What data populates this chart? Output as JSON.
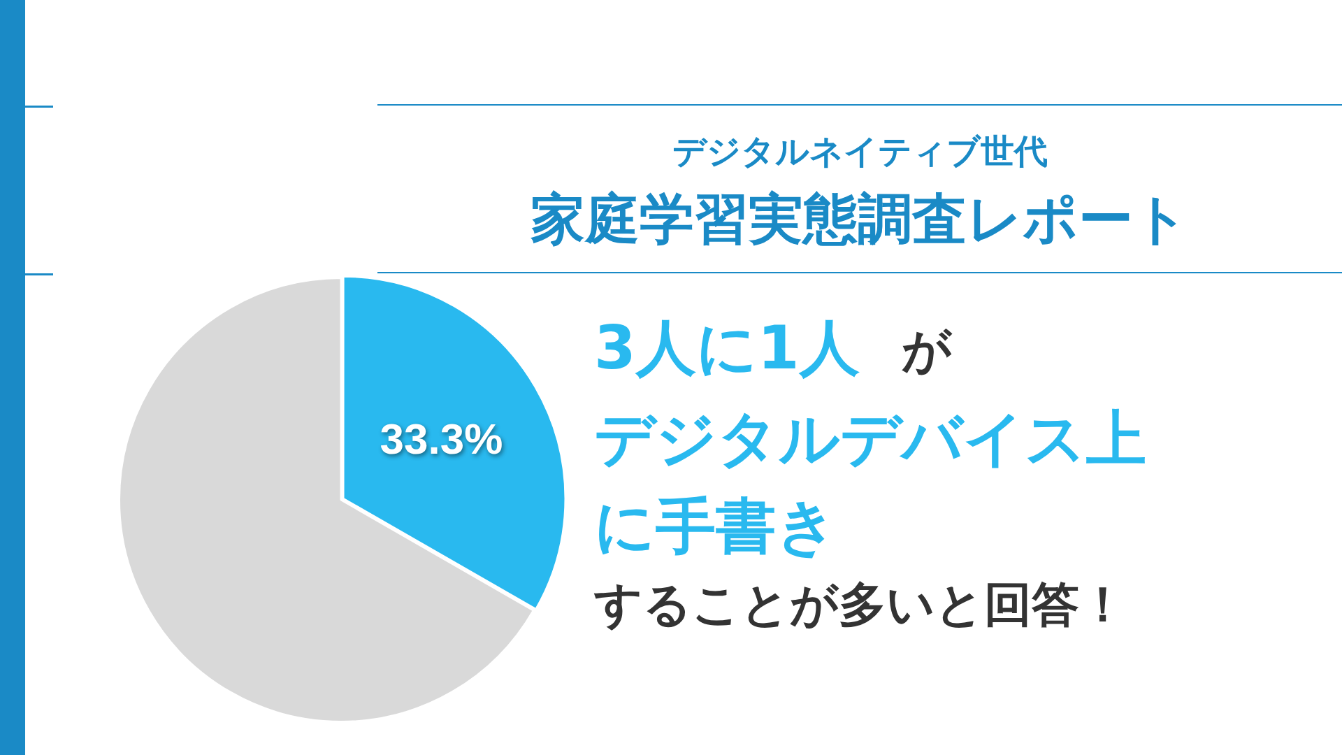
{
  "chart_data": {
    "type": "pie",
    "subtitle": "デジタルネイティブ世代",
    "title": "家庭学習実態調査レポート",
    "categories": [
      null,
      null
    ],
    "values": [
      33.3,
      66.7
    ],
    "colors": [
      "#29b9ef",
      "#d9d9d9"
    ],
    "value_labels": [
      "33.3%",
      null
    ],
    "legend": false,
    "annotations": [
      "3人に1人",
      "が",
      "デジタルデバイス上",
      "に手書き",
      "することが多いと回答！"
    ]
  }
}
